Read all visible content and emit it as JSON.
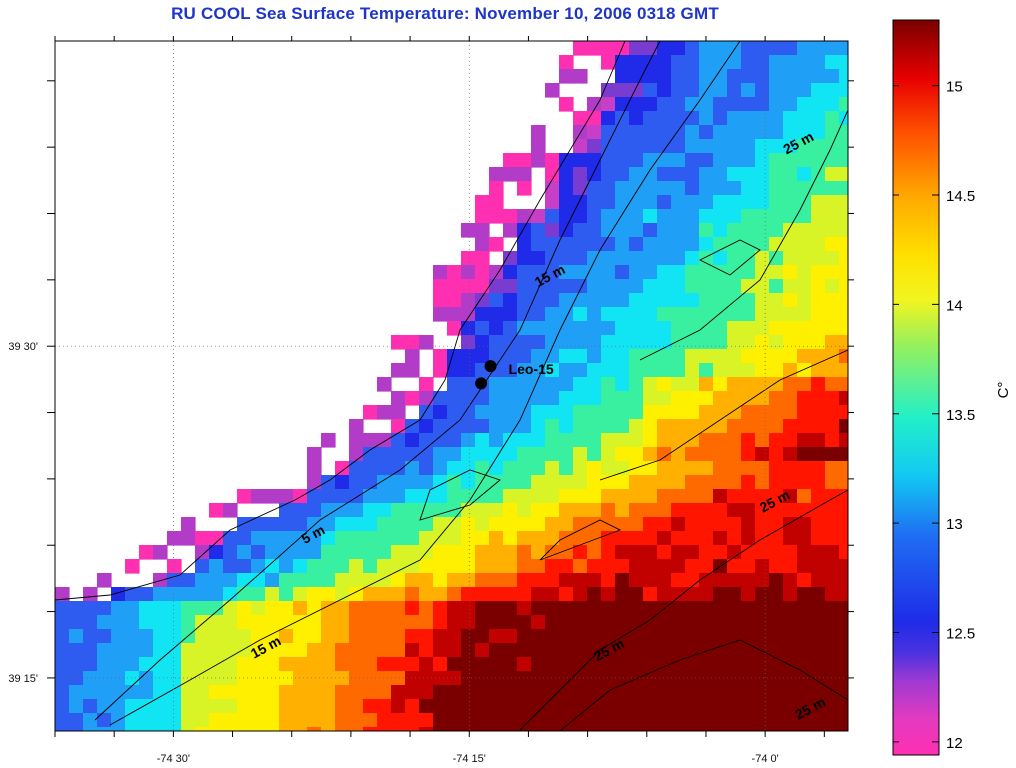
{
  "title": "RU COOL  Sea Surface Temperature:  November 10, 2006 0318 GMT",
  "x_ticks": [
    {
      "lon": -74.5,
      "label": "-74 30'"
    },
    {
      "lon": -74.25,
      "label": "-74 15'"
    },
    {
      "lon": -74.0,
      "label": "-74 0'"
    }
  ],
  "y_ticks": [
    {
      "lat": 39.5,
      "label": "39 30'"
    },
    {
      "lat": 39.25,
      "label": "39 15'"
    }
  ],
  "colorbar": {
    "unit_label": "C°",
    "min": 11.94,
    "max": 15.3,
    "ticks": [
      12,
      12.5,
      13,
      13.5,
      14,
      14.5,
      15
    ]
  },
  "contour_labels": [
    {
      "text": "5 m",
      "lon": -74.38,
      "lat": 39.355
    },
    {
      "text": "15 m",
      "lon": -74.18,
      "lat": 39.55
    },
    {
      "text": "15 m",
      "lon": -74.42,
      "lat": 39.27
    },
    {
      "text": "25 m",
      "lon": -73.97,
      "lat": 39.65
    },
    {
      "text": "25 m",
      "lon": -73.99,
      "lat": 39.38
    },
    {
      "text": "25 m",
      "lon": -74.13,
      "lat": 39.268
    },
    {
      "text": "25 m",
      "lon": -73.96,
      "lat": 39.224
    }
  ],
  "stations": [
    {
      "name": "Leo-15",
      "points": [
        {
          "lon": -74.24,
          "lat": 39.472
        },
        {
          "lon": -74.232,
          "lat": 39.485
        }
      ]
    }
  ],
  "palette": [
    "#ff2fb2",
    "#c63fc6",
    "#7a3bd0",
    "#1f2be8",
    "#2f5cf0",
    "#1f9ff5",
    "#11e4f2",
    "#38f0a0",
    "#d8f326",
    "#fff000",
    "#ffb000",
    "#ff6a00",
    "#ff1500",
    "#c10000",
    "#7a0000"
  ],
  "chart_data": {
    "type": "heatmap",
    "title": "RU COOL  Sea Surface Temperature:  November 10, 2006 0318 GMT",
    "x_range": [
      -74.6,
      -73.93
    ],
    "y_range": [
      39.21,
      39.73
    ],
    "value_range": [
      11.94,
      15.3
    ],
    "value_label": "C°",
    "description_values": {
      "nearshore_bay": 12.0,
      "coastal_band": 12.5,
      "mid_shelf": 13.6,
      "offshore_ne": 14.3,
      "offshore_se": 15.0
    }
  }
}
